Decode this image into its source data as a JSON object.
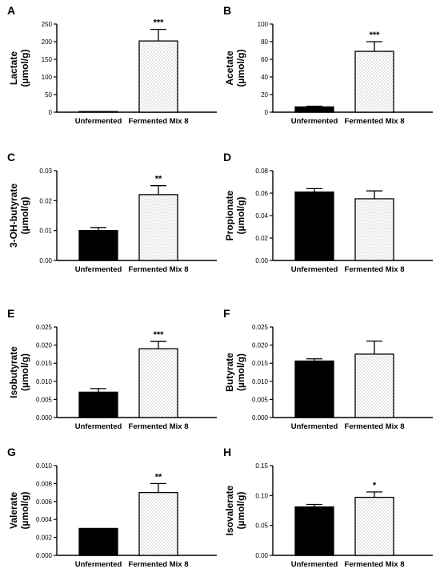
{
  "chart_data": [
    {
      "type": "bar",
      "panel": "A",
      "ylabel": [
        "Lactate",
        "(µmol/g)"
      ],
      "categories": [
        "Unfermented",
        "Fermented Mix 8"
      ],
      "values": [
        1,
        202
      ],
      "errors": [
        0.5,
        33
      ],
      "significance": [
        "",
        "***"
      ],
      "ylim": [
        0,
        250
      ],
      "yticks": [
        "0",
        "50",
        "100",
        "150",
        "200",
        "250"
      ]
    },
    {
      "type": "bar",
      "panel": "B",
      "ylabel": [
        "Acetate",
        "(µmol/g)"
      ],
      "categories": [
        "Unfermented",
        "Fermented Mix 8"
      ],
      "values": [
        6,
        69
      ],
      "errors": [
        0.8,
        11
      ],
      "significance": [
        "",
        "***"
      ],
      "ylim": [
        0,
        100
      ],
      "yticks": [
        "0",
        "20",
        "40",
        "60",
        "80",
        "100"
      ]
    },
    {
      "type": "bar",
      "panel": "C",
      "ylabel": [
        "3-OH-butyrate",
        "(µmol/g)"
      ],
      "categories": [
        "Unfermented",
        "Fermented Mix 8"
      ],
      "values": [
        0.01,
        0.022
      ],
      "errors": [
        0.001,
        0.003
      ],
      "significance": [
        "",
        "**"
      ],
      "ylim": [
        0,
        0.03
      ],
      "yticks": [
        "0.00",
        "0.01",
        "0.02",
        "0.03"
      ]
    },
    {
      "type": "bar",
      "panel": "D",
      "ylabel": [
        "Propionate",
        "(µmol/g)"
      ],
      "categories": [
        "Unfermented",
        "Fermented Mix 8"
      ],
      "values": [
        0.061,
        0.055
      ],
      "errors": [
        0.003,
        0.007
      ],
      "significance": [
        "",
        ""
      ],
      "ylim": [
        0,
        0.08
      ],
      "yticks": [
        "0.00",
        "0.02",
        "0.04",
        "0.06",
        "0.08"
      ]
    },
    {
      "type": "bar",
      "panel": "E",
      "ylabel": [
        "Isobutyrate",
        "(µmol/g)"
      ],
      "categories": [
        "Unfermented",
        "Fermented Mix 8"
      ],
      "values": [
        0.007,
        0.019
      ],
      "errors": [
        0.001,
        0.002
      ],
      "significance": [
        "",
        "***"
      ],
      "ylim": [
        0,
        0.025
      ],
      "yticks": [
        "0.000",
        "0.005",
        "0.010",
        "0.015",
        "0.020",
        "0.025"
      ]
    },
    {
      "type": "bar",
      "panel": "F",
      "ylabel": [
        "Butyrate",
        "(µmol/g)"
      ],
      "categories": [
        "Unfermented",
        "Fermented Mix 8"
      ],
      "values": [
        0.0156,
        0.0175
      ],
      "errors": [
        0.0006,
        0.0036
      ],
      "significance": [
        "",
        ""
      ],
      "ylim": [
        0,
        0.025
      ],
      "yticks": [
        "0.000",
        "0.005",
        "0.010",
        "0.015",
        "0.020",
        "0.025"
      ]
    },
    {
      "type": "bar",
      "panel": "G",
      "ylabel": [
        "Valerate",
        "(µmol/g)"
      ],
      "categories": [
        "Unfermented",
        "Fermented Mix 8"
      ],
      "values": [
        0.003,
        0.007
      ],
      "errors": [
        0,
        0.001
      ],
      "significance": [
        "",
        "**"
      ],
      "ylim": [
        0,
        0.01
      ],
      "yticks": [
        "0.000",
        "0.002",
        "0.004",
        "0.006",
        "0.008",
        "0.010"
      ]
    },
    {
      "type": "bar",
      "panel": "H",
      "ylabel": [
        "Isovalerate",
        "(µmol/g)"
      ],
      "categories": [
        "Unfermented",
        "Fermented Mix 8"
      ],
      "values": [
        0.081,
        0.097
      ],
      "errors": [
        0.004,
        0.009
      ],
      "significance": [
        "",
        "*"
      ],
      "ylim": [
        0,
        0.15
      ],
      "yticks": [
        "0.00",
        "0.05",
        "0.10",
        "0.15"
      ]
    }
  ],
  "colors": {
    "unfermented_fill": "#000000",
    "fermented_fill": "#ffffff",
    "fermented_dots": "#8a8a8a",
    "axis": "#000000"
  }
}
